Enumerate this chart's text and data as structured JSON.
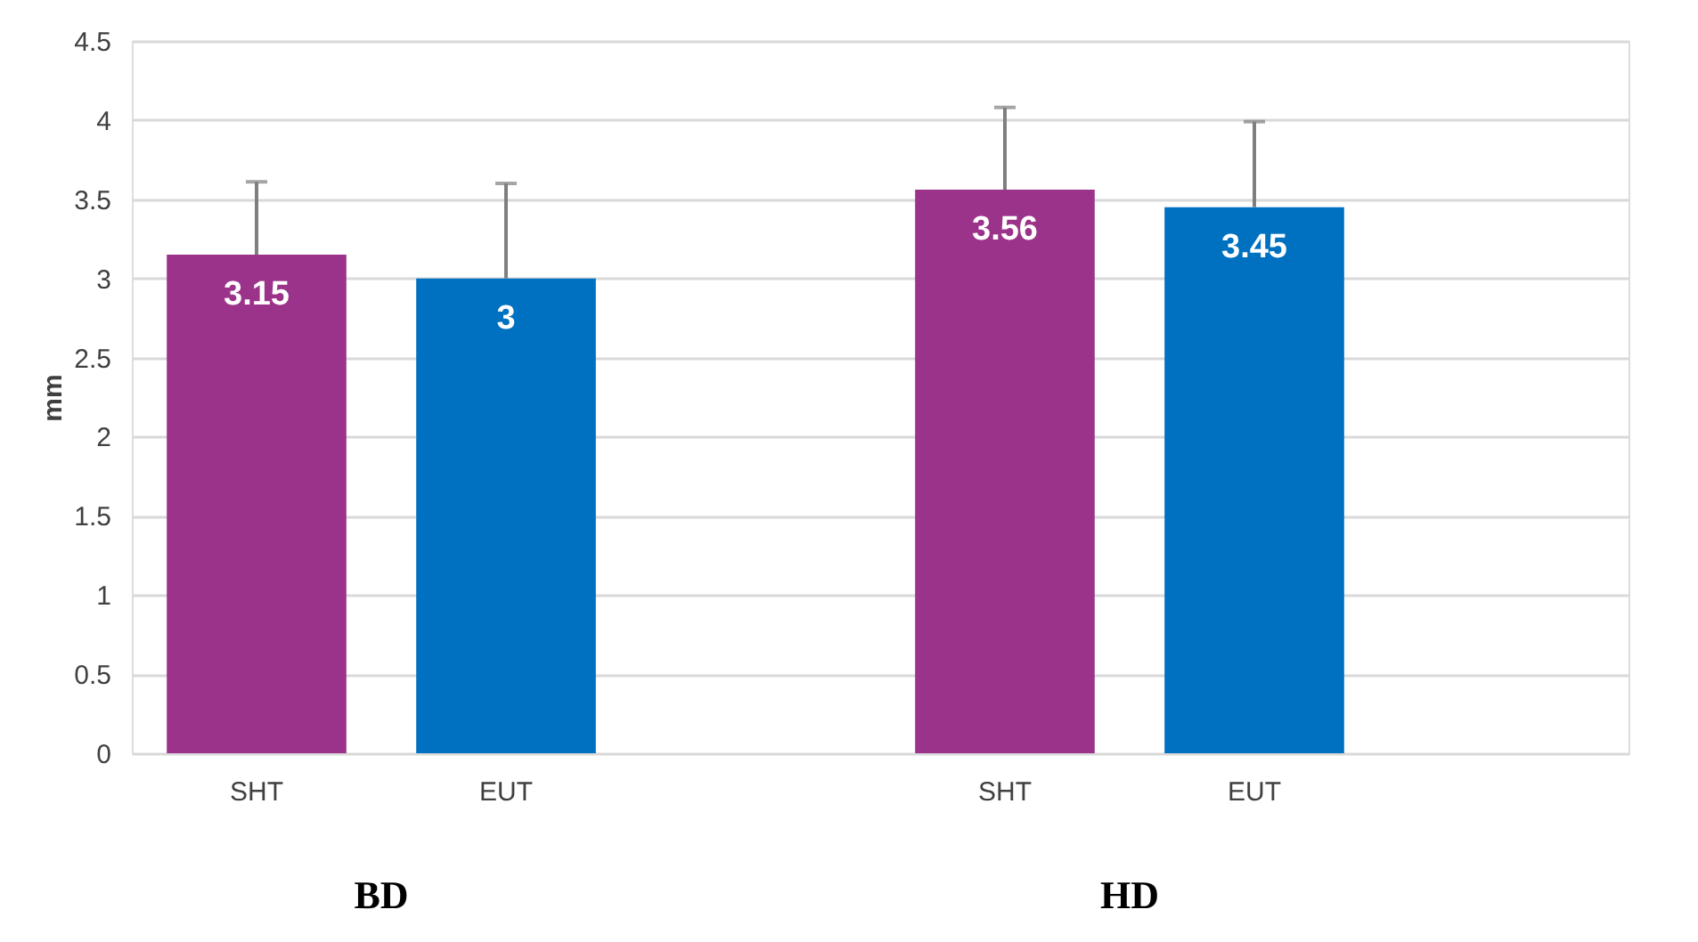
{
  "chart_data": {
    "type": "bar",
    "ylabel": "mm",
    "categories": [
      "SHT",
      "EUT",
      null,
      "SHT",
      "EUT",
      null
    ],
    "values": [
      3.15,
      3,
      null,
      3.56,
      3.45,
      null
    ],
    "colors": [
      "#9b338b",
      "#0070c0",
      null,
      "#9b338b",
      "#0070c0",
      null
    ],
    "errors": [
      [
        3.15,
        3.61
      ],
      [
        3,
        3.6
      ],
      null,
      [
        3.56,
        4.08
      ],
      [
        3.45,
        3.99
      ],
      null
    ],
    "data_labels": true,
    "ylim": [
      0,
      4.5
    ],
    "yticks": [
      0,
      0.5,
      1,
      1.5,
      2,
      2.5,
      3,
      3.5,
      4,
      4.5
    ],
    "grid": "y",
    "annotations": [
      "BD",
      "HD"
    ]
  }
}
